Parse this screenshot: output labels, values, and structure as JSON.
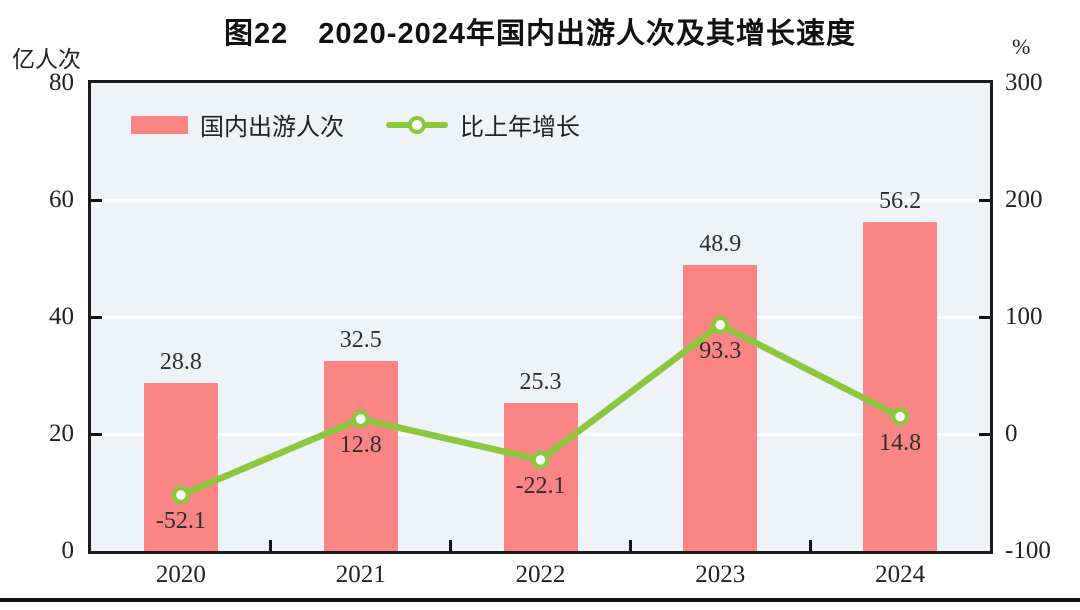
{
  "title": "图22　2020-2024年国内出游人次及其增长速度",
  "axes": {
    "left_unit": "亿人次",
    "right_unit": "%",
    "left_ticks": [
      0,
      20,
      40,
      60,
      80
    ],
    "right_ticks": [
      -100,
      0,
      100,
      200,
      300
    ],
    "left_range": [
      0,
      80
    ],
    "right_range": [
      -100,
      300
    ]
  },
  "legend": [
    {
      "label": "国内出游人次",
      "type": "bar"
    },
    {
      "label": "比上年增长",
      "type": "line"
    }
  ],
  "colors": {
    "bar": "#fb8585",
    "line": "#8dc63f",
    "marker_fill": "#ffffff",
    "plot_background": "#edf3f7",
    "gridline": "#ffffff",
    "axis": "#1a1a1a",
    "text": "#2e2e2e"
  },
  "chart_data": {
    "type": "bar+line",
    "title": "图22　2020-2024年国内出游人次及其增长速度",
    "categories": [
      "2020",
      "2021",
      "2022",
      "2023",
      "2024"
    ],
    "series": [
      {
        "name": "国内出游人次",
        "type": "bar",
        "axis": "left",
        "values": [
          28.8,
          32.5,
          25.3,
          48.9,
          56.2
        ]
      },
      {
        "name": "比上年增长",
        "type": "line",
        "axis": "right",
        "values": [
          -52.1,
          12.8,
          -22.1,
          93.3,
          14.8
        ]
      }
    ],
    "left_axis_label": "亿人次",
    "right_axis_label": "%",
    "left_ylim": [
      0,
      80
    ],
    "right_ylim": [
      -100,
      300
    ],
    "grid": true,
    "gridlines_at_left_values": [
      20,
      40,
      60
    ],
    "legend_position": "top-left-inside"
  }
}
